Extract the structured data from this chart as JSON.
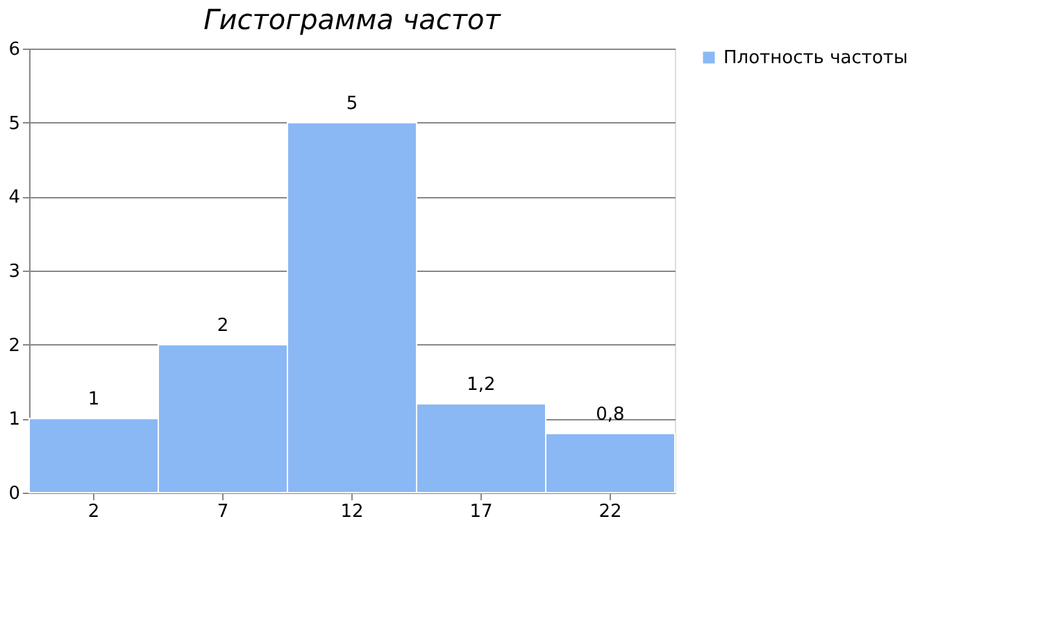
{
  "chart_data": {
    "type": "bar",
    "title": "Гистограмма частот",
    "categories": [
      "2",
      "7",
      "12",
      "17",
      "22"
    ],
    "series": [
      {
        "name": "Плотность частоты",
        "color": "#8ab8f5",
        "values": [
          1,
          2,
          5,
          1.2,
          0.8
        ],
        "value_labels": [
          "1",
          "2",
          "5",
          "1,2",
          "0,8"
        ]
      }
    ],
    "ylim": [
      0,
      6
    ],
    "yticks": [
      0,
      1,
      2,
      3,
      4,
      5,
      6
    ],
    "grid": "y",
    "legend": "right"
  }
}
